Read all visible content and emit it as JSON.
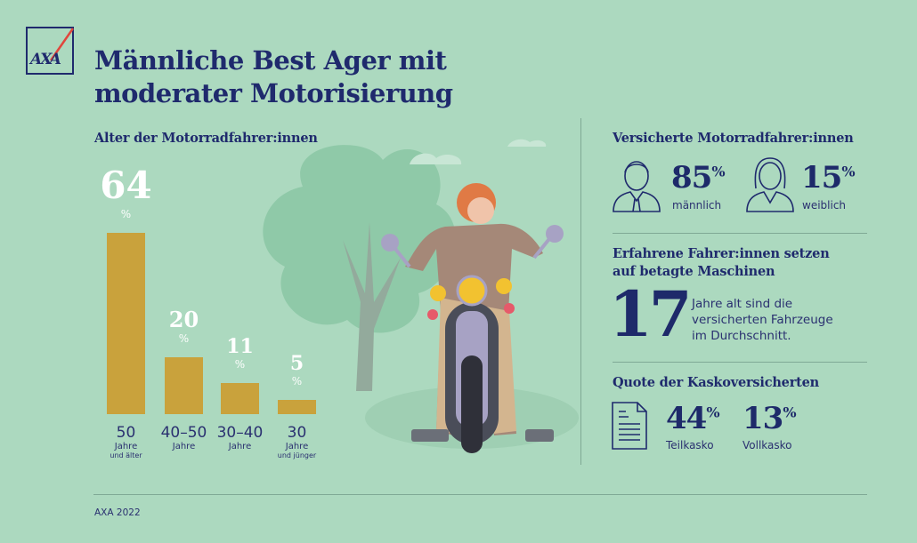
{
  "logo": {
    "text": "AXA"
  },
  "title_line1": "Männliche Best Ager mit",
  "title_line2": "moderater Motorisierung",
  "chart_data": {
    "type": "bar",
    "title": "Alter der Motorradfahrer:innen",
    "categories": [
      "50 Jahre und älter",
      "40–50 Jahre",
      "30–40 Jahre",
      "30 Jahre und jünger"
    ],
    "category_parts": [
      {
        "n": "50",
        "s": "Jahre",
        "t": "und älter"
      },
      {
        "n": "40–50",
        "s": "Jahre",
        "t": ""
      },
      {
        "n": "30–40",
        "s": "Jahre",
        "t": ""
      },
      {
        "n": "30",
        "s": "Jahre",
        "t": "und jünger"
      }
    ],
    "values": [
      64,
      20,
      11,
      5
    ],
    "value_labels": [
      "64",
      "20",
      "11",
      "5"
    ],
    "unit": "%",
    "ylim": [
      0,
      64
    ],
    "grid": false,
    "bar_color": "#c9a23c"
  },
  "insured": {
    "heading": "Versicherte Motorradfahrer:innen",
    "male": {
      "value": "85",
      "unit": "%",
      "label": "männlich",
      "icon": "man-icon"
    },
    "female": {
      "value": "15",
      "unit": "%",
      "label": "weiblich",
      "icon": "woman-icon"
    }
  },
  "age_vehicles": {
    "heading_line1": "Erfahrene Fahrer:innen setzen",
    "heading_line2": "auf betagte Maschinen",
    "value": "17",
    "text_line1": "Jahre alt sind die",
    "text_line2": "versicherten Fahrzeuge",
    "text_line3": "im Durchschnitt."
  },
  "kasko": {
    "heading": "Quote der Kaskoversicherten",
    "partial": {
      "value": "44",
      "unit": "%",
      "label": "Teilkasko"
    },
    "full": {
      "value": "13",
      "unit": "%",
      "label": "Vollkasko"
    },
    "icon": "document-icon"
  },
  "source": "AXA 2022",
  "colors": {
    "background": "#acd9bf",
    "navy": "#1f2a6d",
    "bar": "#c9a23c"
  }
}
